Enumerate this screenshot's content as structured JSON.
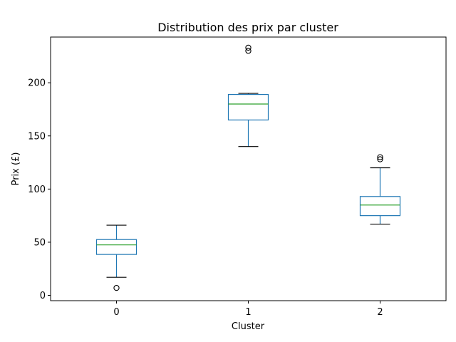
{
  "chart_data": {
    "type": "boxplot",
    "title": "Distribution des prix par cluster",
    "xlabel": "Cluster",
    "ylabel": "Prix (£)",
    "categories": [
      "0",
      "1",
      "2"
    ],
    "ylim": [
      -5,
      243
    ],
    "yticks": [
      0,
      50,
      100,
      150,
      200
    ],
    "grid": false,
    "boxes": [
      {
        "category": "0",
        "whisker_low": 17,
        "q1": 38.5,
        "median": 47.5,
        "q3": 52.5,
        "whisker_high": 66,
        "fliers": [
          7
        ]
      },
      {
        "category": "1",
        "whisker_low": 140,
        "q1": 165,
        "median": 180,
        "q3": 189,
        "whisker_high": 190,
        "fliers": [
          230,
          233
        ]
      },
      {
        "category": "2",
        "whisker_low": 67,
        "q1": 75,
        "median": 85,
        "q3": 93,
        "whisker_high": 120,
        "fliers": [
          128,
          130
        ]
      }
    ],
    "colors": {
      "box": "#1f77b4",
      "median": "#2ca02c",
      "whisker_cap": "#000000",
      "flier": "#000000"
    }
  }
}
